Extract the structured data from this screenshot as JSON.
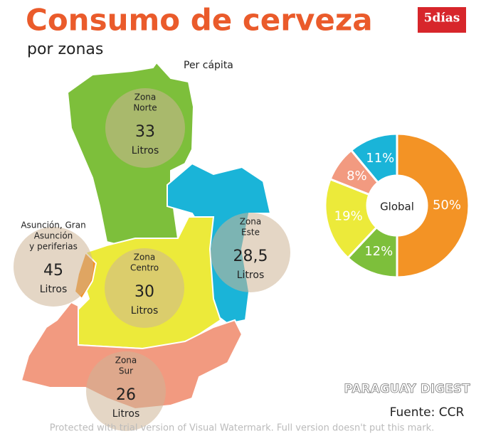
{
  "title": "Consumo de cerveza",
  "subtitle": "por zonas",
  "logo": "5días",
  "note": "Per cápita",
  "zones": [
    {
      "name": [
        "Zona",
        "Norte"
      ],
      "value": "33",
      "unit": "Litros"
    },
    {
      "name": [
        "Zona",
        "Este"
      ],
      "value": "28,5",
      "unit": "Litros"
    },
    {
      "name": [
        "Asunción, Gran",
        "Asunción",
        "y periferias"
      ],
      "value": "45",
      "unit": "Litros"
    },
    {
      "name": [
        "Zona",
        "Centro"
      ],
      "value": "30",
      "unit": "Litros"
    },
    {
      "name": [
        "Zona",
        "Sur"
      ],
      "value": "26",
      "unit": "Litros"
    }
  ],
  "chart_data": {
    "type": "donut",
    "center_label": "Global",
    "values": [
      50,
      12,
      19,
      8,
      11
    ],
    "value_labels": [
      "50%",
      "12%",
      "19%",
      "8%",
      "11%"
    ],
    "colors": [
      "#f39325",
      "#7dbf3b",
      "#ecea3a",
      "#f29a80",
      "#1ab4d8"
    ]
  },
  "source": "Fuente: CCR",
  "watermark": "PARAGUAY DIGEST",
  "trial_notice": "Protected with trial version of Visual Watermark. Full version doesn't put this mark."
}
